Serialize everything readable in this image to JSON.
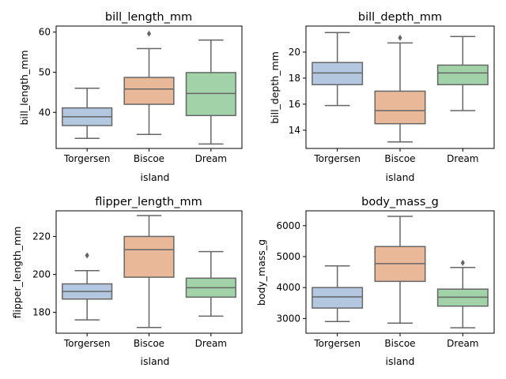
{
  "chart_data": [
    {
      "type": "box",
      "title": "bill_length_mm",
      "xlabel": "island",
      "ylabel": "bill_length_mm",
      "categories": [
        "Torgersen",
        "Biscoe",
        "Dream"
      ],
      "ylim": [
        31.0,
        61.5
      ],
      "yticks": [
        40,
        50,
        60
      ],
      "boxes": [
        {
          "whisker_low": 33.5,
          "q1": 36.7,
          "median": 38.9,
          "q3": 41.1,
          "whisker_high": 46.0,
          "outliers": []
        },
        {
          "whisker_low": 34.5,
          "q1": 42.0,
          "median": 45.8,
          "q3": 48.7,
          "whisker_high": 55.9,
          "outliers": [
            59.6
          ]
        },
        {
          "whisker_low": 32.1,
          "q1": 39.2,
          "median": 44.7,
          "q3": 49.9,
          "whisker_high": 58.0,
          "outliers": []
        }
      ]
    },
    {
      "type": "box",
      "title": "bill_depth_mm",
      "xlabel": "island",
      "ylabel": "bill_depth_mm",
      "categories": [
        "Torgersen",
        "Biscoe",
        "Dream"
      ],
      "ylim": [
        12.6,
        22.0
      ],
      "yticks": [
        14,
        16,
        18,
        20
      ],
      "boxes": [
        {
          "whisker_low": 15.9,
          "q1": 17.5,
          "median": 18.4,
          "q3": 19.2,
          "whisker_high": 21.5,
          "outliers": []
        },
        {
          "whisker_low": 13.1,
          "q1": 14.5,
          "median": 15.5,
          "q3": 17.0,
          "whisker_high": 20.7,
          "outliers": [
            21.1
          ]
        },
        {
          "whisker_low": 15.5,
          "q1": 17.5,
          "median": 18.4,
          "q3": 19.0,
          "whisker_high": 21.2,
          "outliers": []
        }
      ]
    },
    {
      "type": "box",
      "title": "flipper_length_mm",
      "xlabel": "island",
      "ylabel": "flipper_length_mm",
      "categories": [
        "Torgersen",
        "Biscoe",
        "Dream"
      ],
      "ylim": [
        169.0,
        233.5
      ],
      "yticks": [
        180,
        200,
        220
      ],
      "boxes": [
        {
          "whisker_low": 176.0,
          "q1": 187.0,
          "median": 191.0,
          "q3": 195.0,
          "whisker_high": 202.0,
          "outliers": [
            210.0
          ]
        },
        {
          "whisker_low": 172.0,
          "q1": 198.5,
          "median": 213.0,
          "q3": 220.0,
          "whisker_high": 231.0,
          "outliers": []
        },
        {
          "whisker_low": 178.0,
          "q1": 188.0,
          "median": 193.0,
          "q3": 198.0,
          "whisker_high": 212.0,
          "outliers": []
        }
      ]
    },
    {
      "type": "box",
      "title": "body_mass_g",
      "xlabel": "island",
      "ylabel": "body_mass_g",
      "categories": [
        "Torgersen",
        "Biscoe",
        "Dream"
      ],
      "ylim": [
        2525,
        6480
      ],
      "yticks": [
        3000,
        4000,
        5000,
        6000
      ],
      "boxes": [
        {
          "whisker_low": 2900,
          "q1": 3338,
          "median": 3700,
          "q3": 4000,
          "whisker_high": 4700,
          "outliers": []
        },
        {
          "whisker_low": 2850,
          "q1": 4200,
          "median": 4775,
          "q3": 5325,
          "whisker_high": 6300,
          "outliers": []
        },
        {
          "whisker_low": 2700,
          "q1": 3400,
          "median": 3688,
          "q3": 3950,
          "whisker_high": 4650,
          "outliers": [
            4800
          ]
        }
      ]
    }
  ],
  "colors": {
    "box_fills": [
      "#b3c8e0",
      "#e8b898",
      "#a1d2a8"
    ],
    "box_lines": "#666666",
    "outlier": "#666666",
    "axes": "#000000"
  }
}
